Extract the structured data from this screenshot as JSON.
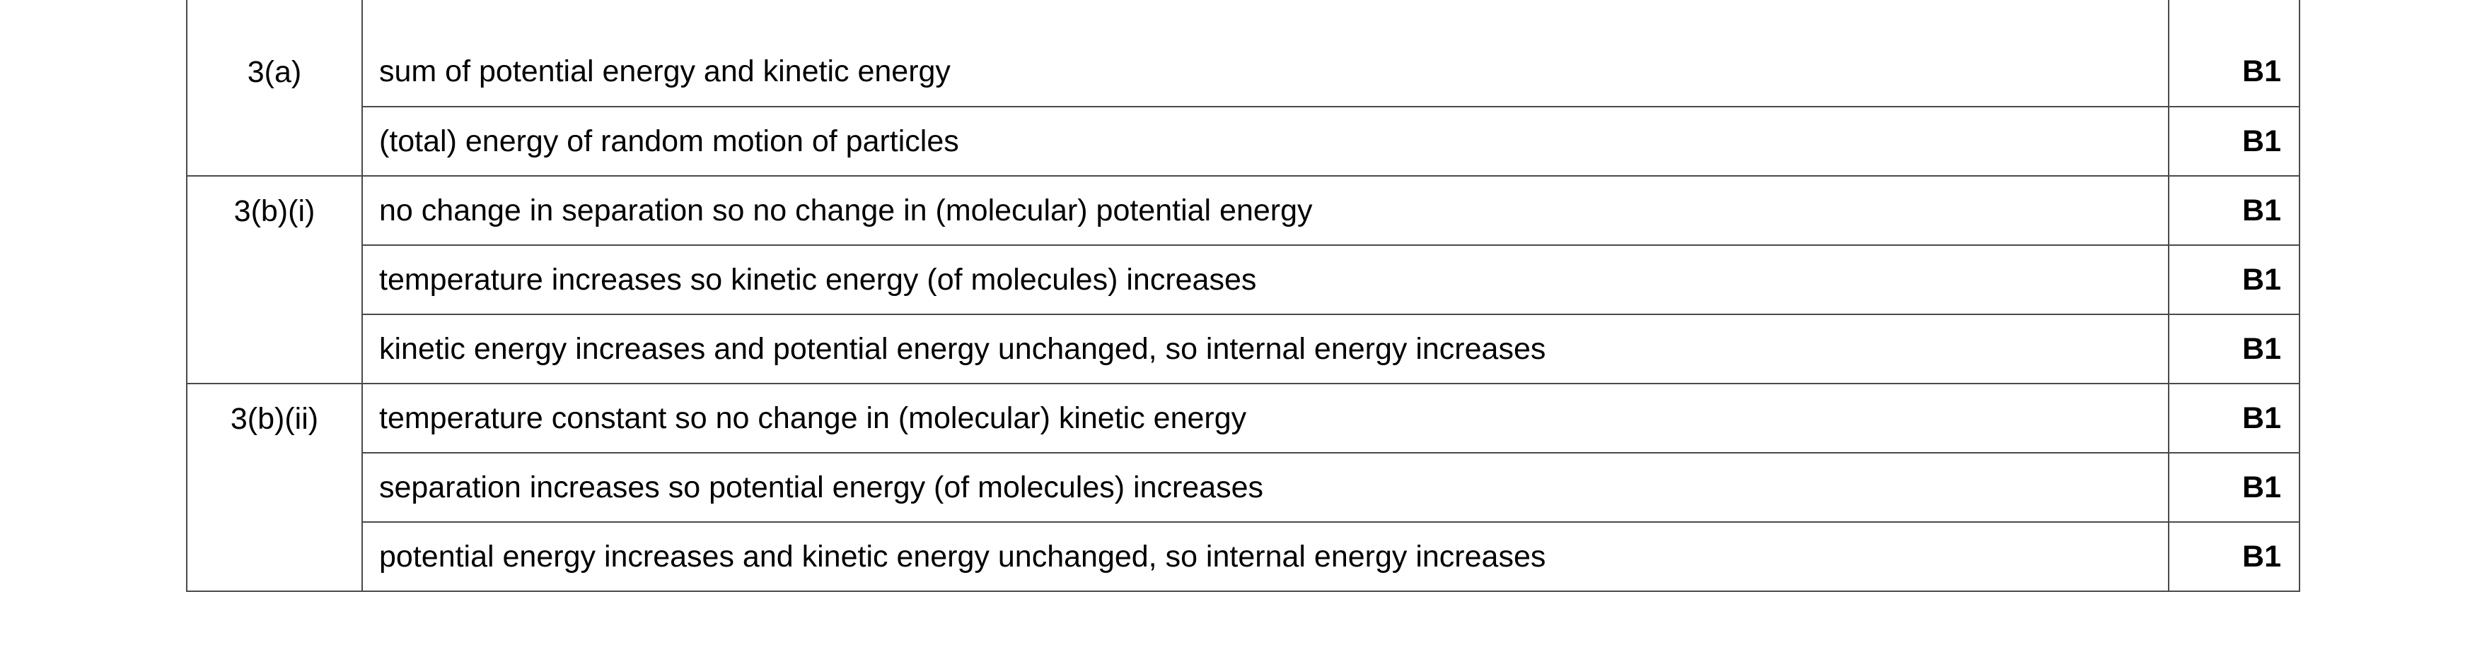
{
  "groups": [
    {
      "question": "3(a)",
      "rows": [
        {
          "answer": "sum of potential energy and kinetic energy",
          "mark": "B1"
        },
        {
          "answer": "(total) energy of random motion of particles",
          "mark": "B1"
        }
      ]
    },
    {
      "question": "3(b)(i)",
      "rows": [
        {
          "answer": "no change in separation so no change in (molecular) potential energy",
          "mark": "B1"
        },
        {
          "answer": "temperature increases so kinetic energy (of molecules) increases",
          "mark": "B1"
        },
        {
          "answer": "kinetic energy increases and potential energy unchanged, so internal energy increases",
          "mark": "B1"
        }
      ]
    },
    {
      "question": "3(b)(ii)",
      "rows": [
        {
          "answer": "temperature constant so no change in (molecular) kinetic energy",
          "mark": "B1"
        },
        {
          "answer": "separation increases so potential energy (of molecules) increases",
          "mark": "B1"
        },
        {
          "answer": "potential energy increases and kinetic energy unchanged, so internal energy increases",
          "mark": "B1"
        }
      ]
    }
  ]
}
